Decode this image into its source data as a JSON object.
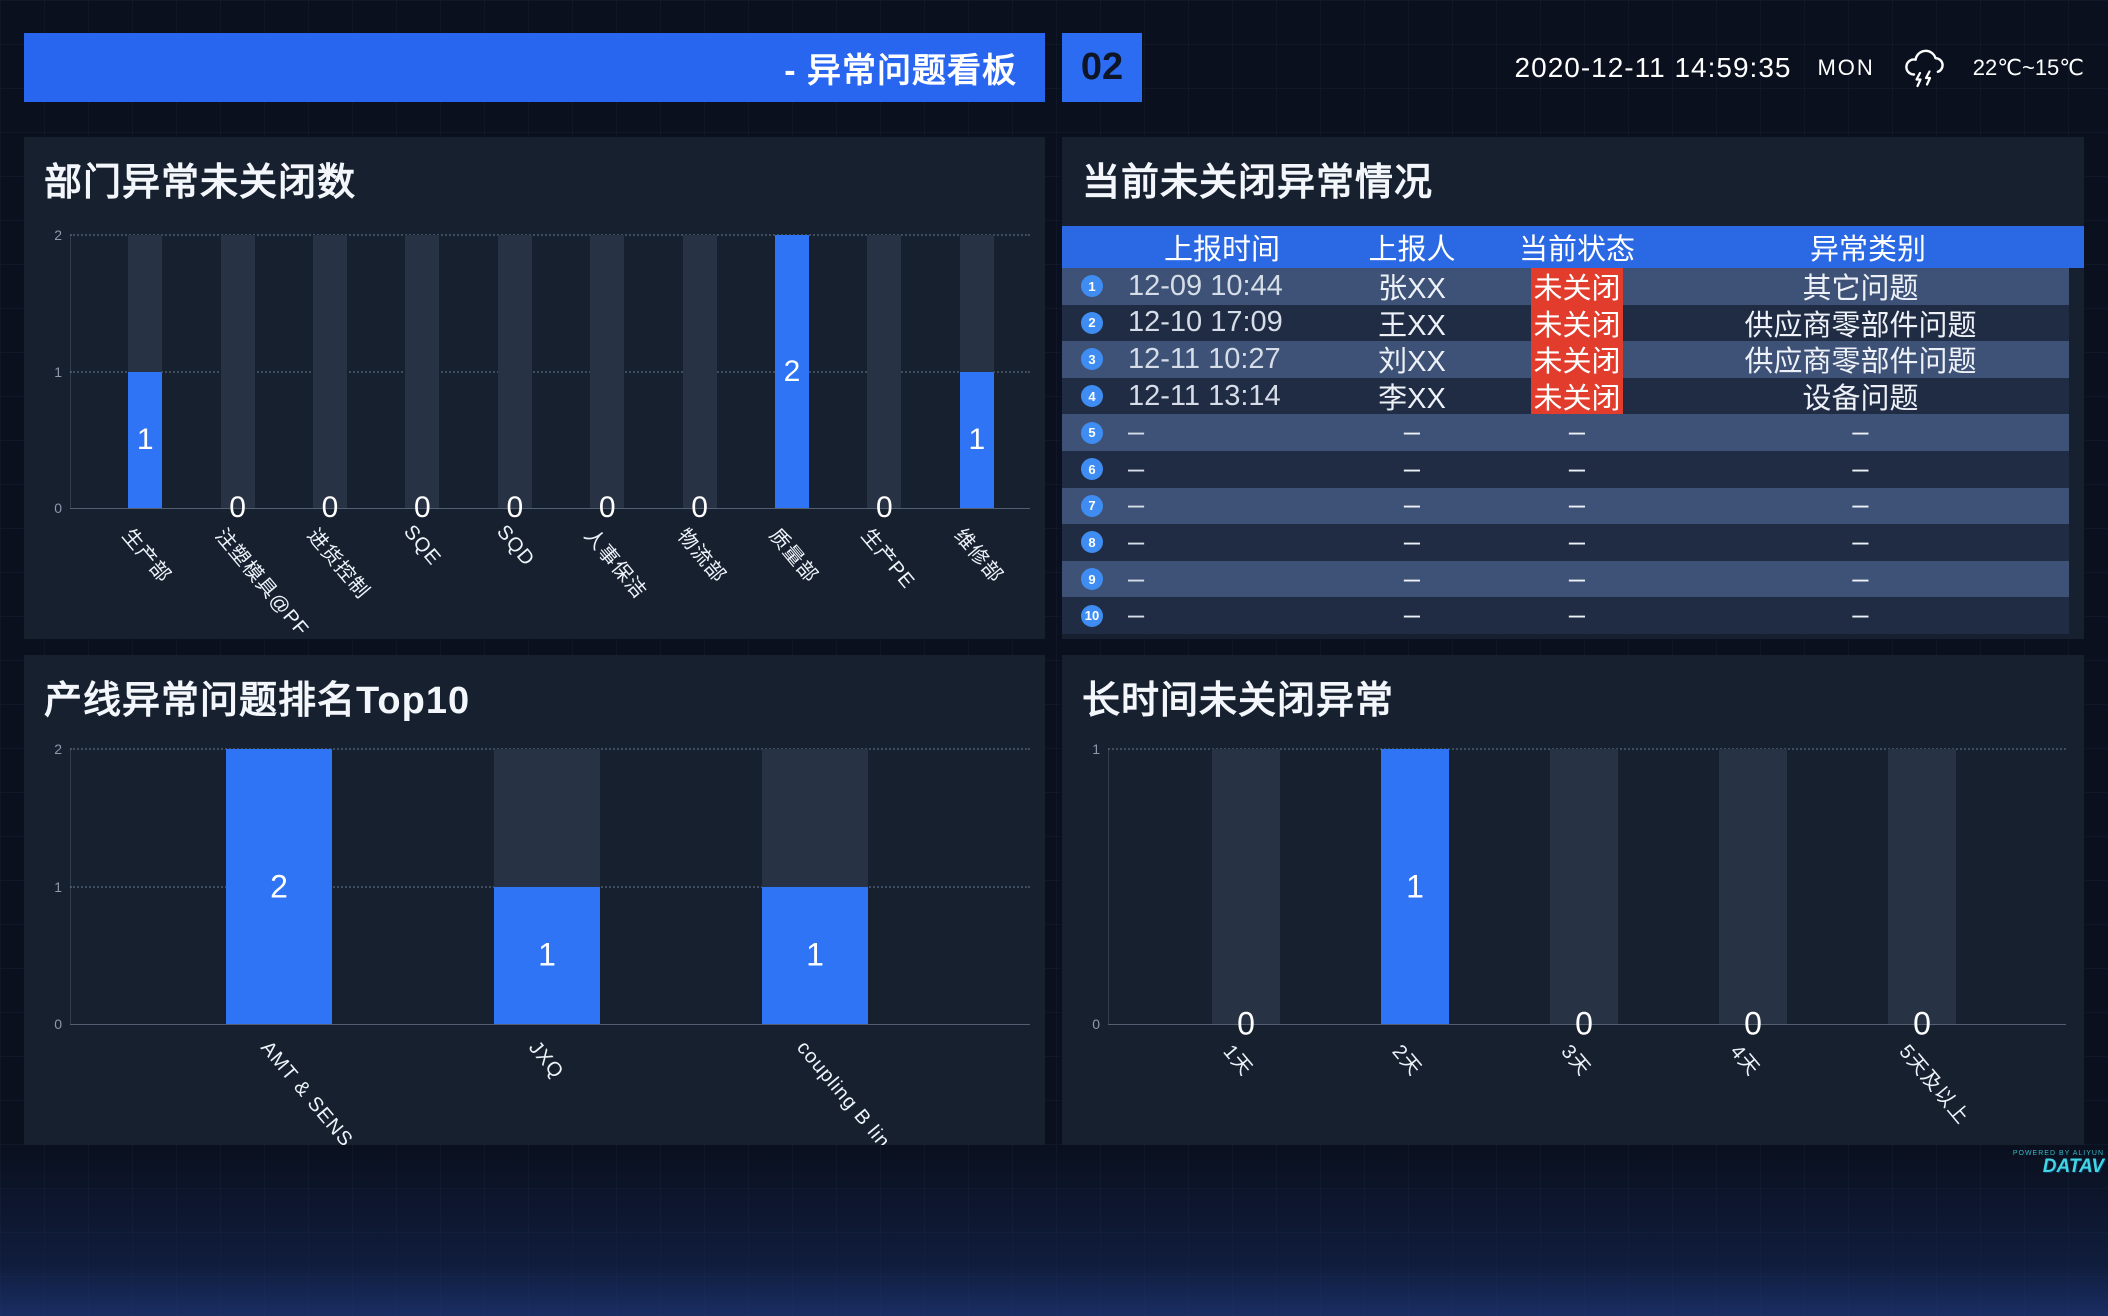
{
  "header": {
    "title": "- 异常问题看板",
    "badge": "02",
    "datetime": "2020-12-11 14:59:35",
    "weekday": "MON",
    "weather_icon": "thunder-shower-cloud-icon",
    "temperature": "22℃~15℃"
  },
  "panels": {
    "dept": {
      "title": "部门异常未关闭数"
    },
    "current": {
      "title": "当前未关闭异常情况",
      "columns": [
        "上报时间",
        "上报人",
        "当前状态",
        "异常类别"
      ],
      "rows": [
        {
          "index": "1",
          "time": "12-09 10:44",
          "reporter": "张XX",
          "status": "未关闭",
          "category": "其它问题"
        },
        {
          "index": "2",
          "time": "12-10 17:09",
          "reporter": "王XX",
          "status": "未关闭",
          "category": "供应商零部件问题"
        },
        {
          "index": "3",
          "time": "12-11 10:27",
          "reporter": "刘XX",
          "status": "未关闭",
          "category": "供应商零部件问题"
        },
        {
          "index": "4",
          "time": "12-11 13:14",
          "reporter": "李XX",
          "status": "未关闭",
          "category": "设备问题"
        },
        {
          "index": "5",
          "time": "–",
          "reporter": "–",
          "status": "–",
          "category": "–"
        },
        {
          "index": "6",
          "time": "–",
          "reporter": "–",
          "status": "–",
          "category": "–"
        },
        {
          "index": "7",
          "time": "–",
          "reporter": "–",
          "status": "–",
          "category": "–"
        },
        {
          "index": "8",
          "time": "–",
          "reporter": "–",
          "status": "–",
          "category": "–"
        },
        {
          "index": "9",
          "time": "–",
          "reporter": "–",
          "status": "–",
          "category": "–"
        },
        {
          "index": "10",
          "time": "–",
          "reporter": "–",
          "status": "–",
          "category": "–"
        }
      ],
      "unclosed_status_label": "未关闭"
    },
    "rank": {
      "title": "产线异常问题排名Top10"
    },
    "longtime": {
      "title": "长时间未关闭异常"
    }
  },
  "chart_data": [
    {
      "id": "dept",
      "type": "bar",
      "title": "部门异常未关闭数",
      "categories": [
        "生产部",
        "注塑模具@PF",
        "进货控制",
        "SQE",
        "SQD",
        "人事保洁",
        "物流部",
        "质量部",
        "生产PE",
        "维修部"
      ],
      "values": [
        1,
        0,
        0,
        0,
        0,
        0,
        0,
        2,
        0,
        1
      ],
      "xlabel": "",
      "ylabel": "",
      "ylim": [
        0,
        2
      ],
      "yticks": [
        0,
        1,
        2
      ],
      "grid": "dotted-horizontal",
      "legend": "none",
      "value_labels": "inside-bar, zero at baseline"
    },
    {
      "id": "rank",
      "type": "bar",
      "title": "产线异常问题排名Top10",
      "categories": [
        "AMT & SENS",
        "JXQ",
        "coupling B lin"
      ],
      "values": [
        2,
        1,
        1
      ],
      "xlabel": "",
      "ylabel": "",
      "ylim": [
        0,
        2
      ],
      "yticks": [
        0,
        1,
        2
      ],
      "grid": "dotted-horizontal",
      "legend": "none",
      "value_labels": "inside-bar"
    },
    {
      "id": "longtime",
      "type": "bar",
      "title": "长时间未关闭异常",
      "categories": [
        "1天",
        "2天",
        "3天",
        "4天",
        "5天及以上"
      ],
      "values": [
        0,
        1,
        0,
        0,
        0
      ],
      "xlabel": "",
      "ylabel": "",
      "ylim": [
        0,
        1
      ],
      "yticks": [
        0,
        1
      ],
      "grid": "dotted-horizontal",
      "legend": "none",
      "value_labels": "inside-bar, zero at baseline"
    }
  ],
  "watermark": {
    "powered": "POWERED BY ALIYUN",
    "brand": "DATAV"
  },
  "colors": {
    "accent_bar_blue": "#2f74f4",
    "track_gray": "#273244",
    "alert_red": "#e23c2c",
    "header_bar_blue": "#2966f0",
    "table_header_blue": "#2b68e4",
    "row_light": "#3d5276",
    "row_dark": "#1f2c44",
    "index_badge_blue": "#3f8df2",
    "brand_teal": "#40d6e4",
    "panel_bg": "#16202f",
    "page_bg": "#0a101e"
  }
}
